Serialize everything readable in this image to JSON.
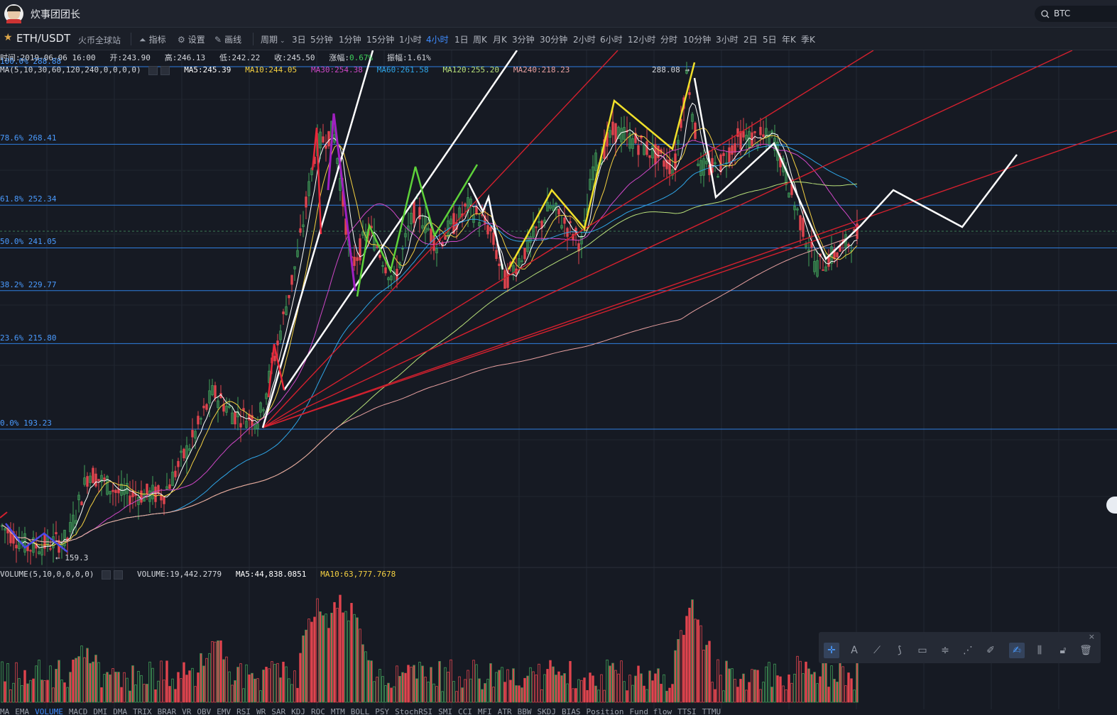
{
  "app": {
    "title": "炊事团团长"
  },
  "search": {
    "value": "BTC"
  },
  "toolbar": {
    "pair": "ETH/USDT",
    "exchange": "火币全球站",
    "indicator_label": "指标",
    "settings_label": "设置",
    "draw_label": "画线",
    "period_label": "周期",
    "periods": [
      "3日",
      "5分钟",
      "1分钟",
      "15分钟",
      "1小时",
      "4小时",
      "1日",
      "周K",
      "月K",
      "3分钟",
      "30分钟",
      "2小时",
      "6小时",
      "12小时",
      "分时",
      "10分钟",
      "3小时",
      "2日",
      "5日",
      "年K",
      "季K"
    ],
    "active_period": "4小时"
  },
  "ohlc": {
    "time": "时间:2019-06-06 16:00",
    "open": "开:243.90",
    "high": "高:246.13",
    "low": "低:242.22",
    "close": "收:245.50",
    "change_label": "涨幅:",
    "change_value": "0.67%",
    "amplitude": "振幅:1.61%"
  },
  "ma": {
    "params": "MA(5,10,30,60,120,240,0,0,0,0)",
    "ma5": "MA5:245.39",
    "ma10": "MA10:244.05",
    "ma30": "MA30:254.38",
    "ma60": "MA60:261.58",
    "ma120": "MA120:255.20",
    "ma240": "MA240:218.23"
  },
  "volume": {
    "params": "VOLUME(5,10,0,0,0,0)",
    "vol": "VOLUME:19,442.2779",
    "ma5": "MA5:44,838.0851",
    "ma10": "MA10:63,777.7678"
  },
  "fib_levels": [
    {
      "label": "100.0% 288.88"
    },
    {
      "label": "78.6% 268.41"
    },
    {
      "label": "61.8% 252.34"
    },
    {
      "label": "50.0% 241.05"
    },
    {
      "label": "38.2% 229.77"
    },
    {
      "label": "23.6% 215.80"
    },
    {
      "label": "0.0% 193.23"
    }
  ],
  "markers": {
    "high": "288.08 →",
    "low": "← 159.3"
  },
  "bottom_indicators": [
    "MA",
    "EMA",
    "VOLUME",
    "MACD",
    "DMI",
    "DMA",
    "TRIX",
    "BRAR",
    "VR",
    "OBV",
    "EMV",
    "RSI",
    "WR",
    "SAR",
    "KDJ",
    "ROC",
    "MTM",
    "BOLL",
    "PSY",
    "StochRSI",
    "SMI",
    "CCI",
    "MFI",
    "ATR",
    "BBW",
    "SKDJ",
    "BIAS",
    "Position",
    "Fund flow",
    "TTSI",
    "TTMU"
  ],
  "active_bottom_indicator": "VOLUME",
  "colors": {
    "background": "#161a23",
    "up": "#41a15a",
    "down": "#e0444e",
    "fib": "#2f7fe0",
    "ma5": "#ffffff",
    "ma10": "#f5d142",
    "ma30": "#d048c8",
    "ma60": "#2fa6e8",
    "ma120": "#b8e07a",
    "ma240": "#e8a0a0"
  },
  "drawing_tools": [
    "crosshair-icon",
    "text-icon",
    "line-icon",
    "pen-icon",
    "rect-icon",
    "parallel-icon",
    "wave-icon",
    "brush-icon",
    "draw-active-icon",
    "ruler-icon",
    "lock-icon",
    "trash-icon"
  ],
  "chart_data": {
    "type": "candlestick",
    "symbol": "ETH/USDT",
    "interval": "4小时",
    "y_range": [
      155,
      295
    ],
    "fib_values": [
      288.88,
      268.41,
      252.34,
      241.05,
      229.77,
      215.8,
      193.23
    ],
    "last_close": 245.5,
    "high_marker": 288.08,
    "low_marker": 159.3
  }
}
